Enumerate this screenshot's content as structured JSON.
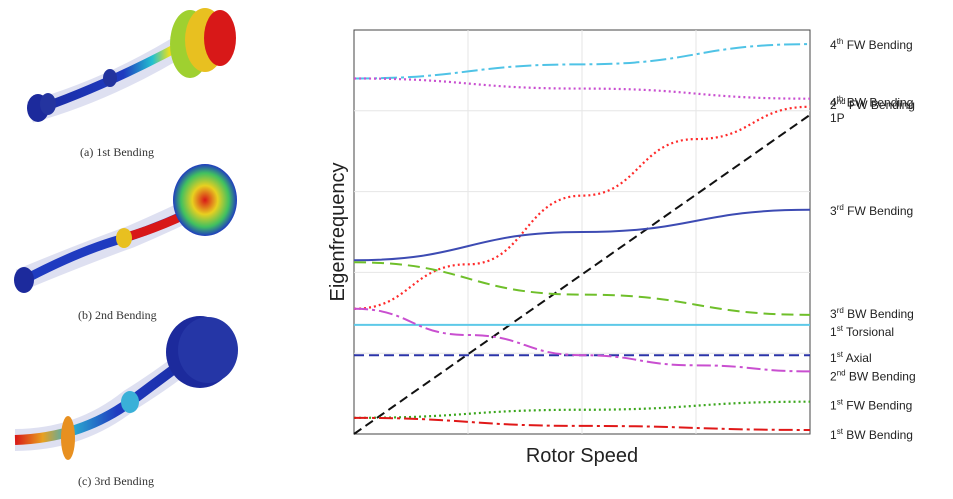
{
  "modes": [
    {
      "caption": "(a) 1st Bending",
      "name": "mode-1st-bending"
    },
    {
      "caption": "(b) 2nd Bending",
      "name": "mode-2nd-bending"
    },
    {
      "caption": "(c) 3rd Bending",
      "name": "mode-3rd-bending"
    }
  ],
  "chart_data": {
    "type": "line",
    "xlabel": "Rotor Speed",
    "ylabel": "Eigenfrequency",
    "xlim": [
      0,
      1
    ],
    "ylim": [
      0,
      1
    ],
    "grid": true,
    "legend": "direct labels on right edge",
    "series": [
      {
        "name": "4th FW Bending",
        "label_base": "4",
        "label_sup": "th",
        "label_rest": " FW Bending",
        "color": "#4fc3e6",
        "dash": "16,4,3,4",
        "x": [
          0,
          0.5,
          1
        ],
        "y": [
          0.88,
          0.915,
          0.965
        ]
      },
      {
        "name": "4th BW Bending",
        "label_base": "4",
        "label_sup": "th",
        "label_rest": " BW Bending",
        "color": "#c94fd0",
        "dash": "2,3",
        "x": [
          0,
          0.5,
          1
        ],
        "y": [
          0.88,
          0.855,
          0.83
        ]
      },
      {
        "name": "2nd FW Bending",
        "label_base": "2",
        "label_sup": "nd",
        "label_rest": " FW Bending",
        "color": "#ff2a2a",
        "dash": "2,3",
        "x": [
          0,
          0.25,
          0.5,
          0.75,
          1
        ],
        "y": [
          0.31,
          0.42,
          0.59,
          0.73,
          0.81
        ]
      },
      {
        "name": "1P",
        "label_base": "1P",
        "label_sup": "",
        "label_rest": "",
        "color": "#111111",
        "dash": "9,5",
        "x": [
          0,
          1
        ],
        "y": [
          0,
          0.79
        ]
      },
      {
        "name": "3rd FW Bending",
        "label_base": "3",
        "label_sup": "rd",
        "label_rest": " FW Bending",
        "color": "#3d4bb3",
        "dash": "",
        "x": [
          0,
          0.5,
          1
        ],
        "y": [
          0.43,
          0.5,
          0.555
        ]
      },
      {
        "name": "3rd BW Bending",
        "label_base": "3",
        "label_sup": "rd",
        "label_rest": " BW Bending",
        "color": "#6fbf2a",
        "dash": "12,6",
        "x": [
          0,
          0.5,
          1
        ],
        "y": [
          0.425,
          0.345,
          0.295
        ]
      },
      {
        "name": "1st Torsional",
        "label_base": "1",
        "label_sup": "st",
        "label_rest": " Torsional",
        "color": "#5ec9e8",
        "dash": "",
        "x": [
          0,
          1
        ],
        "y": [
          0.27,
          0.27
        ]
      },
      {
        "name": "1st Axial",
        "label_base": "1",
        "label_sup": "st",
        "label_rest": " Axial",
        "color": "#2b34a8",
        "dash": "10,5",
        "x": [
          0,
          1
        ],
        "y": [
          0.195,
          0.195
        ]
      },
      {
        "name": "2nd BW Bending",
        "label_base": "2",
        "label_sup": "nd",
        "label_rest": " BW Bending",
        "color": "#c94fd0",
        "dash": "14,4,3,4",
        "x": [
          0,
          0.25,
          0.5,
          0.75,
          1
        ],
        "y": [
          0.31,
          0.245,
          0.195,
          0.17,
          0.155
        ]
      },
      {
        "name": "1st FW Bending",
        "label_base": "1",
        "label_sup": "st",
        "label_rest": " FW Bending",
        "color": "#3aa61c",
        "dash": "2,3",
        "x": [
          0,
          0.5,
          1
        ],
        "y": [
          0.04,
          0.06,
          0.08
        ]
      },
      {
        "name": "1st BW Bending",
        "label_base": "1",
        "label_sup": "st",
        "label_rest": " BW Bending",
        "color": "#e01818",
        "dash": "14,4,3,4",
        "x": [
          0,
          0.5,
          1
        ],
        "y": [
          0.04,
          0.02,
          0.01
        ]
      }
    ]
  }
}
